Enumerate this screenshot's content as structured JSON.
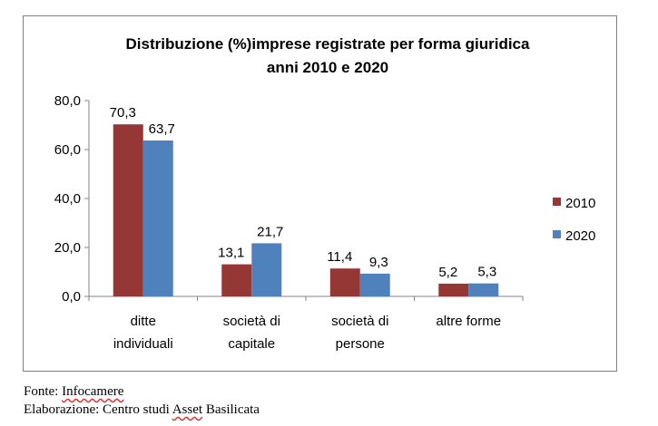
{
  "chart_data": {
    "type": "bar",
    "title": "Distribuzione (%)imprese registrate per forma giuridica",
    "subtitle": "anni 2010 e 2020",
    "categories": [
      [
        "ditte",
        "individuali"
      ],
      [
        "società di",
        "capitale"
      ],
      [
        "società di",
        "persone"
      ],
      [
        "altre forme"
      ]
    ],
    "series": [
      {
        "name": "2010",
        "color": "#953735",
        "values": [
          70.3,
          13.1,
          11.4,
          5.2
        ],
        "labels": [
          "70,3",
          "13,1",
          "11,4",
          "5,2"
        ]
      },
      {
        "name": "2020",
        "color": "#4f81bd",
        "values": [
          63.7,
          21.7,
          9.3,
          5.3
        ],
        "labels": [
          "63,7",
          "21,7",
          "9,3",
          "5,3"
        ]
      }
    ],
    "ylim": [
      0,
      80
    ],
    "yticks": [
      "0,0",
      "20,0",
      "40,0",
      "60,0",
      "80,0"
    ],
    "grid": false,
    "legend_position": "right"
  },
  "footer": {
    "source_prefix": "Fonte: ",
    "source_name": "Infocamere",
    "credit_prefix": "Elaborazione: Centro studi ",
    "credit_name": "Asset",
    "credit_suffix": " Basilicata"
  }
}
